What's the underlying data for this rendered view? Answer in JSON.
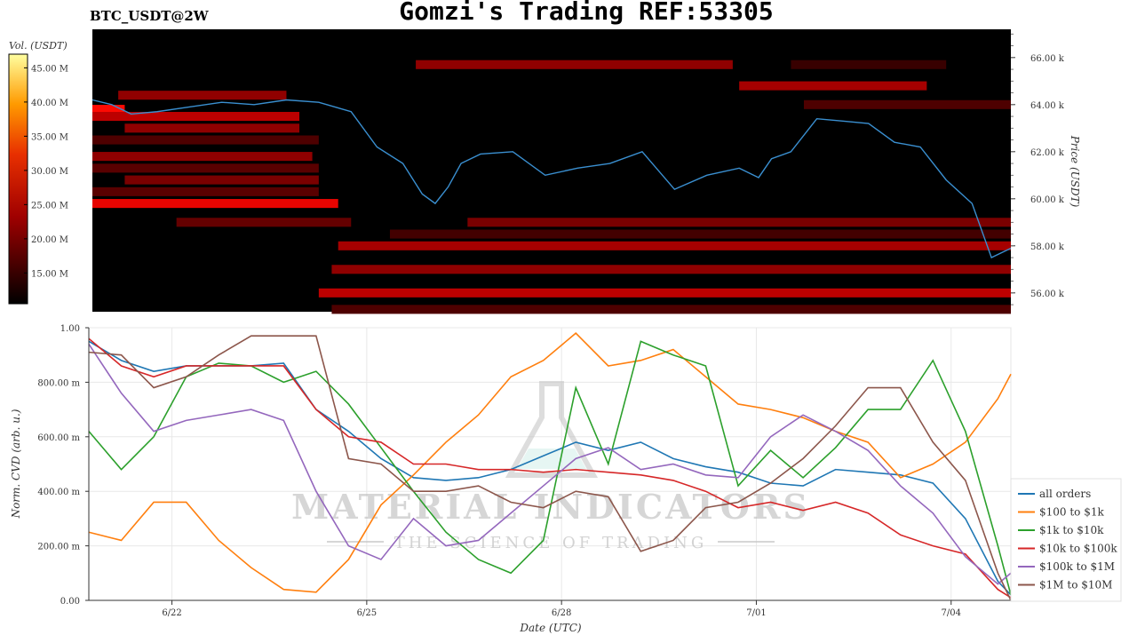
{
  "header": {
    "symbol": "BTC_USDT@2W",
    "title": "Gomzi's Trading REF:53305"
  },
  "watermark": {
    "line1": "MATERIAL INDICATORS",
    "line2": "THE SCIENCE OF TRADING"
  },
  "colors": {
    "all_orders": "#1f77b4",
    "r100_1k": "#ff7f0e",
    "r1k_10k": "#2ca02c",
    "r10k_100k": "#d62728",
    "r100k_1m": "#9467bd",
    "r1m_10m": "#8c564b",
    "price_line": "#3a8fd0"
  },
  "chart_data": [
    {
      "type": "heatmap",
      "ylabel": "Price (USDT)",
      "colorbar_label": "Vol. (USDT)",
      "colorbar_ticks": [
        "45.00 M",
        "40.00 M",
        "35.00 M",
        "30.00 M",
        "25.00 M",
        "20.00 M",
        "15.00 M"
      ],
      "colorbar_values": [
        45,
        40,
        35,
        30,
        25,
        20,
        15
      ],
      "colorbar_range": [
        10.5,
        47
      ],
      "y_ticks": [
        "66.00 k",
        "64.00 k",
        "62.00 k",
        "60.00 k",
        "58.00 k",
        "56.00 k"
      ],
      "y_tick_values": [
        66000,
        64000,
        62000,
        60000,
        58000,
        56000
      ],
      "ylim": [
        55200,
        67200
      ],
      "x_range_days": [
        0,
        14.2
      ],
      "price_series": {
        "name": "Price",
        "t": [
          0,
          0.3,
          0.6,
          1.0,
          1.5,
          2.0,
          2.5,
          3.0,
          3.5,
          4.0,
          4.4,
          4.8,
          5.1,
          5.3,
          5.5,
          5.7,
          6.0,
          6.5,
          7.0,
          7.5,
          8.0,
          8.5,
          9.0,
          9.5,
          10.0,
          10.3,
          10.5,
          10.8,
          11.2,
          11.6,
          12.0,
          12.4,
          12.8,
          13.2,
          13.6,
          13.9,
          14.2
        ],
        "values": [
          64200,
          64000,
          63600,
          63700,
          63900,
          64100,
          64000,
          64200,
          64100,
          63700,
          62200,
          61500,
          60200,
          59800,
          60500,
          61500,
          61900,
          62000,
          61000,
          61300,
          61500,
          62000,
          60400,
          61000,
          61300,
          60900,
          61700,
          62000,
          63400,
          63300,
          63200,
          62400,
          62200,
          60800,
          59800,
          57500,
          57900
        ]
      },
      "bands": [
        {
          "price": 65700,
          "t0": 5.0,
          "t1": 9.9,
          "intensity": 20
        },
        {
          "price": 65700,
          "t0": 10.8,
          "t1": 13.2,
          "intensity": 12
        },
        {
          "price": 64800,
          "t0": 10.0,
          "t1": 12.9,
          "intensity": 22
        },
        {
          "price": 64400,
          "t0": 0.4,
          "t1": 3.0,
          "intensity": 20
        },
        {
          "price": 64000,
          "t0": 11.0,
          "t1": 14.2,
          "intensity": 14
        },
        {
          "price": 63800,
          "t0": 0,
          "t1": 0.5,
          "intensity": 30
        },
        {
          "price": 63500,
          "t0": 0,
          "t1": 3.2,
          "intensity": 24
        },
        {
          "price": 63000,
          "t0": 0.5,
          "t1": 3.2,
          "intensity": 20
        },
        {
          "price": 62500,
          "t0": 0,
          "t1": 3.5,
          "intensity": 14
        },
        {
          "price": 61800,
          "t0": 0,
          "t1": 3.4,
          "intensity": 20
        },
        {
          "price": 61300,
          "t0": 0,
          "t1": 3.5,
          "intensity": 15
        },
        {
          "price": 60800,
          "t0": 0.5,
          "t1": 3.5,
          "intensity": 18
        },
        {
          "price": 60300,
          "t0": 0,
          "t1": 3.5,
          "intensity": 15
        },
        {
          "price": 59800,
          "t0": 0,
          "t1": 3.8,
          "intensity": 28
        },
        {
          "price": 59000,
          "t0": 1.3,
          "t1": 4.0,
          "intensity": 16
        },
        {
          "price": 59000,
          "t0": 5.8,
          "t1": 14.2,
          "intensity": 18
        },
        {
          "price": 58500,
          "t0": 4.6,
          "t1": 14.2,
          "intensity": 13
        },
        {
          "price": 58000,
          "t0": 3.8,
          "t1": 14.2,
          "intensity": 22
        },
        {
          "price": 57000,
          "t0": 3.7,
          "t1": 14.2,
          "intensity": 20
        },
        {
          "price": 56000,
          "t0": 3.5,
          "t1": 14.2,
          "intensity": 24
        },
        {
          "price": 55300,
          "t0": 3.7,
          "t1": 14.2,
          "intensity": 14
        }
      ]
    },
    {
      "type": "line",
      "xlabel": "Date (UTC)",
      "ylabel": "Norm. CVD (arb. u.)",
      "ylim": [
        0,
        1
      ],
      "y_ticks": [
        "1.00",
        "800.00 m",
        "600.00 m",
        "400.00 m",
        "200.00 m",
        "0.00"
      ],
      "y_tick_values": [
        1.0,
        0.8,
        0.6,
        0.4,
        0.2,
        0.0
      ],
      "x_ticks": [
        "6/22",
        "6/25",
        "6/28",
        "7/01",
        "7/04"
      ],
      "x_tick_days": [
        1.28,
        4.28,
        7.28,
        10.28,
        13.28
      ],
      "x_range_days": [
        0,
        14.2
      ],
      "grid": true,
      "legend": "right",
      "x": [
        0,
        0.5,
        1.0,
        1.5,
        2.0,
        2.5,
        3.0,
        3.5,
        4.0,
        4.5,
        5.0,
        5.5,
        6.0,
        6.5,
        7.0,
        7.5,
        8.0,
        8.5,
        9.0,
        9.5,
        10.0,
        10.5,
        11.0,
        11.5,
        12.0,
        12.5,
        13.0,
        13.5,
        14.0,
        14.2
      ],
      "series": [
        {
          "name": "all orders",
          "key": "all_orders",
          "values": [
            0.95,
            0.88,
            0.84,
            0.86,
            0.86,
            0.86,
            0.87,
            0.7,
            0.62,
            0.52,
            0.45,
            0.44,
            0.45,
            0.48,
            0.53,
            0.58,
            0.55,
            0.58,
            0.52,
            0.49,
            0.47,
            0.43,
            0.42,
            0.48,
            0.47,
            0.46,
            0.43,
            0.3,
            0.07,
            0.02
          ]
        },
        {
          "name": "$100 to $1k",
          "key": "r100_1k",
          "values": [
            0.25,
            0.22,
            0.36,
            0.36,
            0.22,
            0.12,
            0.04,
            0.03,
            0.15,
            0.35,
            0.46,
            0.58,
            0.68,
            0.82,
            0.88,
            0.98,
            0.86,
            0.88,
            0.92,
            0.82,
            0.72,
            0.7,
            0.67,
            0.62,
            0.58,
            0.45,
            0.5,
            0.58,
            0.74,
            0.83
          ]
        },
        {
          "name": "$1k to $10k",
          "key": "r1k_10k",
          "values": [
            0.62,
            0.48,
            0.6,
            0.82,
            0.87,
            0.86,
            0.8,
            0.84,
            0.72,
            0.56,
            0.4,
            0.25,
            0.15,
            0.1,
            0.22,
            0.78,
            0.5,
            0.95,
            0.9,
            0.86,
            0.42,
            0.55,
            0.45,
            0.56,
            0.7,
            0.7,
            0.88,
            0.62,
            0.2,
            0.02
          ]
        },
        {
          "name": "$10k to $100k",
          "key": "r10k_100k",
          "values": [
            0.96,
            0.86,
            0.82,
            0.86,
            0.86,
            0.86,
            0.86,
            0.7,
            0.6,
            0.58,
            0.5,
            0.5,
            0.48,
            0.48,
            0.47,
            0.48,
            0.47,
            0.46,
            0.44,
            0.4,
            0.34,
            0.36,
            0.33,
            0.36,
            0.32,
            0.24,
            0.2,
            0.17,
            0.04,
            0.01
          ]
        },
        {
          "name": "$100k to $1M",
          "key": "r100k_1m",
          "values": [
            0.94,
            0.76,
            0.62,
            0.66,
            0.68,
            0.7,
            0.66,
            0.4,
            0.2,
            0.15,
            0.3,
            0.2,
            0.22,
            0.32,
            0.42,
            0.52,
            0.56,
            0.48,
            0.5,
            0.46,
            0.45,
            0.6,
            0.68,
            0.62,
            0.55,
            0.42,
            0.32,
            0.16,
            0.06,
            0.1
          ]
        },
        {
          "name": "$1M to $10M",
          "key": "r1m_10m",
          "values": [
            0.91,
            0.9,
            0.78,
            0.82,
            0.9,
            0.97,
            0.97,
            0.97,
            0.52,
            0.5,
            0.4,
            0.4,
            0.42,
            0.36,
            0.34,
            0.4,
            0.38,
            0.18,
            0.22,
            0.34,
            0.36,
            0.43,
            0.52,
            0.64,
            0.78,
            0.78,
            0.58,
            0.44,
            0.1,
            0.0
          ]
        }
      ]
    }
  ]
}
